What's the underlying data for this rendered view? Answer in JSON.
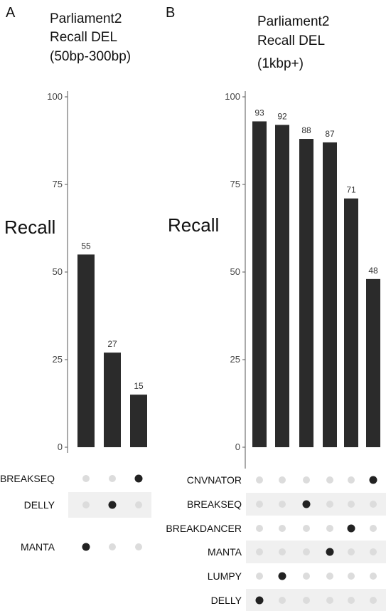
{
  "chart_data": [
    {
      "type": "bar",
      "panel": "A",
      "title_lines": [
        "Parliament2",
        "Recall DEL",
        "(50bp-300bp)"
      ],
      "ylabel": "Recall",
      "ylim": [
        0,
        100
      ],
      "yticks": [
        "0",
        "25",
        "50",
        "75",
        "100"
      ],
      "values": [
        55,
        27,
        15
      ],
      "set_labels": [
        "BREAKSEQ",
        "DELLY",
        "MANTA"
      ],
      "membership": [
        2,
        1,
        0
      ]
    },
    {
      "type": "bar",
      "panel": "B",
      "title_lines": [
        "Parliament2",
        "Recall DEL",
        "(1kbp+)"
      ],
      "ylabel": "Recall",
      "ylim": [
        0,
        100
      ],
      "yticks": [
        "0",
        "25",
        "50",
        "75",
        "100"
      ],
      "values": [
        93,
        92,
        88,
        87,
        71,
        48
      ],
      "set_labels": [
        "CNVNATOR",
        "BREAKSEQ",
        "BREAKDANCER",
        "MANTA",
        "LUMPY",
        "DELLY"
      ],
      "membership": [
        5,
        4,
        1,
        3,
        2,
        0
      ]
    }
  ],
  "colors": {
    "bar": "#2b2b2b",
    "dot_on": "#222222",
    "dot_off": "#dcdcdc",
    "band": "#f0f0f0"
  }
}
